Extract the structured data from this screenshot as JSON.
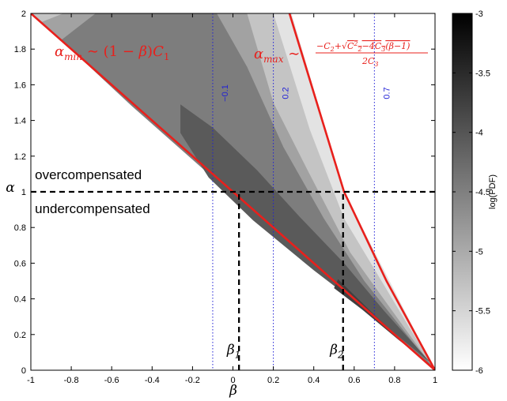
{
  "chart_data": {
    "type": "heatmap",
    "title": "",
    "xlabel": "β",
    "ylabel": "α",
    "xlim": [
      -1,
      1
    ],
    "ylim": [
      0,
      2
    ],
    "xticks": [
      "-1",
      "-0.8",
      "-0.6",
      "-0.4",
      "-0.2",
      "0",
      "0.2",
      "0.4",
      "0.6",
      "0.8",
      "1"
    ],
    "yticks": [
      "0",
      "0.2",
      "0.4",
      "0.6",
      "0.8",
      "1",
      "1.2",
      "1.4",
      "1.6",
      "1.8",
      "2"
    ],
    "colorbar": {
      "label": "log(PDF)",
      "range": [
        -6,
        -3
      ],
      "ticks": [
        "-3",
        "-3.5",
        "-4",
        "-4.5",
        "-5",
        "-5.5",
        "-6"
      ]
    },
    "regions": [
      {
        "level": -5.75,
        "color": "#e3e3e3",
        "polygon": [
          [
            -0.82,
            2.0
          ],
          [
            -0.64,
            2.0
          ],
          [
            -0.46,
            2.0
          ],
          [
            -0.21,
            2.0
          ],
          [
            0.04,
            2.0
          ],
          [
            0.27,
            2.0
          ],
          [
            0.29,
            2.0
          ],
          [
            0.55,
            1.0
          ],
          [
            1.0,
            0.0
          ],
          [
            0.55,
            0.45
          ],
          [
            0.03,
            0.97
          ],
          [
            -0.55,
            1.55
          ],
          [
            -1.0,
            2.0
          ]
        ]
      },
      {
        "level": -5.2,
        "color": "#c4c4c4",
        "polygon": [
          [
            -0.82,
            2.0
          ],
          [
            -0.64,
            2.0
          ],
          [
            -0.46,
            2.0
          ],
          [
            -0.21,
            2.0
          ],
          [
            0.04,
            2.0
          ],
          [
            0.2,
            2.0
          ],
          [
            0.38,
            1.35
          ],
          [
            0.55,
            0.85
          ],
          [
            1.0,
            0.0
          ],
          [
            0.55,
            0.45
          ],
          [
            0.03,
            0.97
          ],
          [
            -0.55,
            1.55
          ],
          [
            -1.0,
            2.0
          ]
        ]
      },
      {
        "level": -4.7,
        "color": "#a2a2a2",
        "polygon": [
          [
            -0.84,
            2.0
          ],
          [
            -0.64,
            2.0
          ],
          [
            -0.47,
            2.0
          ],
          [
            -0.21,
            2.0
          ],
          [
            0.04,
            2.0
          ],
          [
            0.07,
            2.0
          ],
          [
            0.2,
            1.5
          ],
          [
            0.37,
            1.12
          ],
          [
            0.58,
            0.66
          ],
          [
            1.0,
            0.0
          ],
          [
            0.55,
            0.45
          ],
          [
            0.03,
            0.97
          ],
          [
            -0.55,
            1.55
          ],
          [
            -0.95,
            1.95
          ]
        ]
      },
      {
        "level": -4.3,
        "color": "#7d7d7d",
        "polygon": [
          [
            -0.68,
            2.0
          ],
          [
            -0.49,
            2.0
          ],
          [
            -0.46,
            2.0
          ],
          [
            -0.21,
            2.0
          ],
          [
            -0.08,
            2.0
          ],
          [
            0.07,
            1.7
          ],
          [
            0.25,
            1.25
          ],
          [
            0.45,
            0.85
          ],
          [
            0.65,
            0.5
          ],
          [
            1.0,
            0.0
          ],
          [
            0.55,
            0.43
          ],
          [
            0.03,
            0.95
          ],
          [
            -0.5,
            1.48
          ],
          [
            -0.85,
            1.85
          ]
        ]
      },
      {
        "level": -3.9,
        "color": "#5a5a5a",
        "polygon": [
          [
            -0.26,
            1.49
          ],
          [
            -0.1,
            1.36
          ],
          [
            0.12,
            1.12
          ],
          [
            0.33,
            0.86
          ],
          [
            0.55,
            0.6
          ],
          [
            0.75,
            0.33
          ],
          [
            0.98,
            0.04
          ],
          [
            0.7,
            0.3
          ],
          [
            0.4,
            0.56
          ],
          [
            0.1,
            0.84
          ],
          [
            -0.12,
            1.08
          ],
          [
            -0.26,
            1.33
          ]
        ]
      },
      {
        "level": -3.6,
        "color": "#404040",
        "polygon": [
          [
            0.52,
            0.51
          ],
          [
            0.7,
            0.31
          ],
          [
            0.9,
            0.1
          ],
          [
            0.98,
            0.03
          ],
          [
            0.82,
            0.17
          ],
          [
            0.64,
            0.34
          ],
          [
            0.5,
            0.46
          ]
        ]
      }
    ],
    "boundaries": [
      {
        "label": "αmin ~ (1 − β)C1",
        "points": [
          [
            -1.0,
            2.0
          ],
          [
            1.0,
            0.0
          ]
        ],
        "color": "#e8201c"
      },
      {
        "label": "αmax ~ (−C2 + √(C2² − 4C3(β − 1)))/(2C3)",
        "points": [
          [
            0.28,
            2.0
          ],
          [
            0.55,
            1.0
          ],
          [
            0.76,
            0.5
          ],
          [
            1.0,
            0.0
          ]
        ],
        "color": "#e8201c"
      }
    ],
    "reference_lines": [
      {
        "label": "−0.1",
        "x": -0.1,
        "color": "#1f1fd6",
        "style": "dotted"
      },
      {
        "label": "0.2",
        "x": 0.2,
        "color": "#1f1fd6",
        "style": "dotted"
      },
      {
        "label": "0.7",
        "x": 0.7,
        "color": "#1f1fd6",
        "style": "dotted"
      }
    ],
    "dashed_lines": [
      {
        "from": [
          -1.0,
          1.0
        ],
        "to": [
          1.0,
          1.0
        ]
      },
      {
        "from": [
          0.03,
          0.0
        ],
        "to": [
          0.03,
          1.0
        ]
      },
      {
        "from": [
          0.545,
          0.0
        ],
        "to": [
          0.545,
          1.0
        ]
      }
    ],
    "annotations": [
      {
        "text": "overcompensated",
        "x": -0.98,
        "y": 1.07
      },
      {
        "text": "undercompensated",
        "x": -0.98,
        "y": 0.88
      },
      {
        "text": "β1",
        "x": -0.03,
        "y": 0.09
      },
      {
        "text": "β2",
        "x": 0.48,
        "y": 0.09
      }
    ]
  }
}
